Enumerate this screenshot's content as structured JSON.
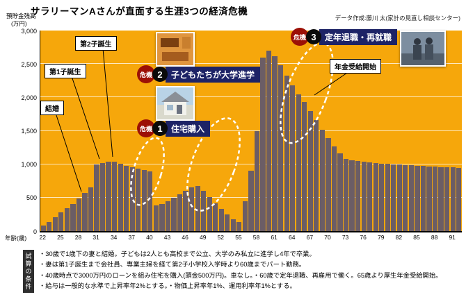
{
  "header": {
    "title": "サラリーマンAさんが直面する生涯3つの経済危機",
    "credit": "データ作成:藤川 太(家計の見直し相談センター)"
  },
  "axis": {
    "y_title_1": "預貯金残高",
    "y_title_2": "(万円)",
    "x_title": "年齢(歳)"
  },
  "chart_data": {
    "type": "bar",
    "title": "サラリーマンAさんが直面する生涯3つの経済危機",
    "xlabel": "年齢(歳)",
    "ylabel": "預貯金残高(万円)",
    "ylim": [
      0,
      3000
    ],
    "yticks": [
      0,
      500,
      1000,
      1500,
      2000,
      2500,
      3000
    ],
    "ytick_labels": [
      "0",
      "500",
      "1,000",
      "1,500",
      "2,000",
      "2,500",
      "3,000"
    ],
    "xtick_ages": [
      22,
      25,
      28,
      31,
      34,
      37,
      40,
      43,
      46,
      49,
      52,
      55,
      58,
      61,
      64,
      67,
      70,
      73,
      76,
      79,
      82,
      85,
      88,
      91
    ],
    "ages": [
      22,
      23,
      24,
      25,
      26,
      27,
      28,
      29,
      30,
      31,
      32,
      33,
      34,
      35,
      36,
      37,
      38,
      39,
      40,
      41,
      42,
      43,
      44,
      45,
      46,
      47,
      48,
      49,
      50,
      51,
      52,
      53,
      54,
      55,
      56,
      57,
      58,
      59,
      60,
      61,
      62,
      63,
      64,
      65,
      66,
      67,
      68,
      69,
      70,
      71,
      72,
      73,
      74,
      75,
      76,
      77,
      78,
      79,
      80,
      81,
      82,
      83,
      84,
      85,
      86,
      87,
      88,
      89,
      90,
      91,
      92
    ],
    "values": [
      80,
      140,
      210,
      280,
      340,
      410,
      490,
      570,
      650,
      1000,
      1020,
      1040,
      1040,
      1010,
      980,
      950,
      930,
      910,
      890,
      380,
      410,
      450,
      500,
      550,
      600,
      650,
      680,
      600,
      510,
      420,
      330,
      250,
      180,
      130,
      450,
      900,
      1500,
      2600,
      2700,
      2620,
      2480,
      2330,
      2180,
      2050,
      1930,
      1800,
      1660,
      1520,
      1390,
      1270,
      1160,
      1080,
      1060,
      1050,
      1040,
      1030,
      1020,
      1010,
      1005,
      1000,
      995,
      990,
      985,
      980,
      975,
      970,
      965,
      960,
      955,
      950,
      945
    ],
    "bar_color": "#6b5d65",
    "plot_bg_color": "#f6a70b",
    "grid": true,
    "legend": "none"
  },
  "annotations": {
    "marriage": "結婚",
    "child1": "第1子誕生",
    "child2": "第2子誕生",
    "pension": "年金受給開始",
    "crises": [
      {
        "badge": "危機",
        "num": "1",
        "label": "住宅購入"
      },
      {
        "badge": "危機",
        "num": "2",
        "label": "子どもたちが大学進学"
      },
      {
        "badge": "危機",
        "num": "3",
        "label": "定年退職・再就職"
      }
    ]
  },
  "conditions": {
    "ribbon": "試算の条件",
    "lines": [
      "・30歳で1歳下の妻と結婚。子どもは2人とも高校まで公立、大学のみ私立に進学し4年で卒業。",
      "・妻は第1子誕生まで会社員、専業主婦を経て第2子小学校入学時より60歳までパート勤務。",
      "・40歳時点で3000万円のローンを組み住宅を購入(頭金500万円)。車なし。・60歳で定年退職、再雇用で働く。65歳より厚生年金受給開始。",
      "・給与は一般的な水準で上昇率年2%とする。・物価上昇率年1%、運用利率年1%とする。"
    ]
  }
}
